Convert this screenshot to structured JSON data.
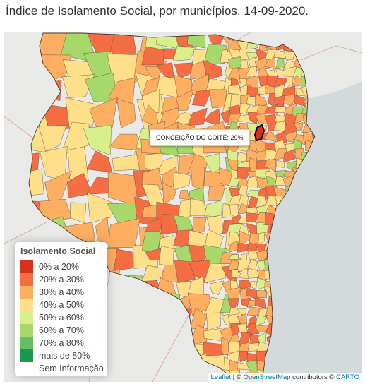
{
  "title": "Índice de Isolamento Social, por municípios, 14-09-2020.",
  "tooltip": {
    "text": "CONCEIÇÃO DO COITÉ: 29%"
  },
  "legend": {
    "title": "Isolamento Social",
    "items": [
      {
        "label": "0% a 20%",
        "color": "#d7301f"
      },
      {
        "label": "20% a 30%",
        "color": "#f46d43"
      },
      {
        "label": "30% a 40%",
        "color": "#fdae61"
      },
      {
        "label": "40% a 50%",
        "color": "#fee08b"
      },
      {
        "label": "50% a 60%",
        "color": "#d9ef8b"
      },
      {
        "label": "60% a 70%",
        "color": "#a6d96a"
      },
      {
        "label": "70% a 80%",
        "color": "#66bd63"
      },
      {
        "label": "mais de 80%",
        "color": "#1a9850"
      },
      {
        "label": "Sem Informação",
        "color": "#ffffff"
      }
    ]
  },
  "attribution": {
    "leaflet": "Leaflet",
    "sep": " | © ",
    "osm": "OpenStreetMap",
    "contrib": " contributors © ",
    "carto": "CARTO"
  },
  "colors": {
    "ocean": "#d4dadc",
    "land": "#e9e9e7",
    "border": "#5a4a3a",
    "highlight_stroke": "#000000"
  }
}
